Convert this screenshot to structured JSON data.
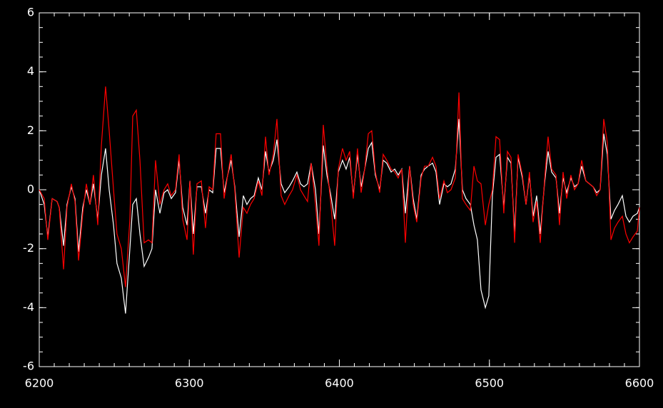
{
  "chart_data": {
    "type": "line",
    "x": [
      6200,
      6203.3,
      6205.7,
      6208.6,
      6211.9,
      6213.3,
      6216.2,
      6218.5,
      6221.4,
      6223.8,
      6226.2,
      6229,
      6231.4,
      6233.8,
      6236.1,
      6239,
      6241.4,
      6244.2,
      6246.6,
      6249.5,
      6251.8,
      6254.7,
      6257.5,
      6260.4,
      6262.3,
      6264.7,
      6267.1,
      6269.9,
      6272.8,
      6275.1,
      6277.5,
      6280.4,
      6283.2,
      6285.6,
      6288,
      6290.8,
      6293.2,
      6295.6,
      6298.5,
      6300.4,
      6302.7,
      6305.1,
      6308,
      6310.8,
      6313.2,
      6315.6,
      6317.9,
      6320.8,
      6323.2,
      6325.6,
      6327.9,
      6330.3,
      6333.2,
      6336,
      6338.4,
      6340.8,
      6343.2,
      6346,
      6348.4,
      6350.8,
      6353.1,
      6356,
      6358.4,
      6361.2,
      6363.6,
      6366.5,
      6368.8,
      6371.7,
      6374.1,
      6376.4,
      6378.8,
      6381.2,
      6384.1,
      6386.4,
      6389.3,
      6391.7,
      6394,
      6396.9,
      6399.3,
      6402.1,
      6404.5,
      6406.9,
      6409.3,
      6412.1,
      6414.5,
      6416.9,
      6419.3,
      6421.6,
      6424,
      6426.9,
      6429.2,
      6431.6,
      6434.5,
      6436.9,
      6439.2,
      6441.6,
      6444,
      6446.8,
      6449.2,
      6451.6,
      6454.5,
      6456.8,
      6459.2,
      6462.1,
      6464.4,
      6466.8,
      6469.7,
      6472,
      6474.4,
      6477.3,
      6479.7,
      6482,
      6484.4,
      6487.3,
      6489.7,
      6492,
      6494.4,
      6497.3,
      6499.6,
      6502,
      6504.4,
      6506.8,
      6509.6,
      6512,
      6514.4,
      6516.8,
      6519.1,
      6522,
      6524.4,
      6526.7,
      6529.1,
      6531.5,
      6533.9,
      6536.7,
      6539.1,
      6541.5,
      6544.4,
      6546.7,
      6549.1,
      6551.5,
      6554.3,
      6556.7,
      6559.1,
      6561.5,
      6564.3,
      6566.7,
      6569.1,
      6571.5,
      6573.8,
      6576.2,
      6578.6,
      6581,
      6583.4,
      6585.7,
      6588.6,
      6591,
      6593.3,
      6595.7,
      6598.6,
      6600
    ],
    "series": [
      {
        "color": "#ffffff",
        "values": [
          0,
          -0.5,
          -1.6,
          -0.3,
          -0.4,
          -0.6,
          -1.9,
          -0.5,
          0.1,
          -0.3,
          -2.1,
          -0.6,
          0,
          -0.5,
          0.2,
          -1,
          0.5,
          1.4,
          0,
          -1.2,
          -2.5,
          -3,
          -4.2,
          -2,
          -0.5,
          -0.3,
          -1.5,
          -2.6,
          -2.3,
          -2,
          0,
          -0.8,
          -0.1,
          0,
          -0.3,
          -0.1,
          1,
          -0.6,
          -1.2,
          0.3,
          -1.5,
          0.1,
          0.1,
          -0.8,
          0,
          -0.1,
          1.4,
          1.4,
          -0.1,
          0.5,
          1,
          0.1,
          -1.6,
          -0.2,
          -0.5,
          -0.3,
          -0.2,
          0.4,
          0,
          1.3,
          0.6,
          1,
          1.7,
          0.2,
          -0.1,
          0.1,
          0.3,
          0.6,
          0.2,
          0.1,
          0.2,
          0.9,
          0,
          -1.5,
          1.5,
          0.5,
          -0.1,
          -1,
          0.6,
          1,
          0.7,
          1.1,
          -0.2,
          1.2,
          0.1,
          0.7,
          1.4,
          1.6,
          0.5,
          0,
          1,
          0.9,
          0.6,
          0.7,
          0.5,
          0.7,
          -0.8,
          0.8,
          -0.3,
          -1,
          0.5,
          0.7,
          0.8,
          0.9,
          0.6,
          -0.5,
          0.2,
          0.1,
          0.2,
          0.7,
          2.4,
          0,
          -0.3,
          -0.5,
          -1.2,
          -1.7,
          -3.4,
          -4,
          -3.6,
          -0.2,
          1.1,
          1.2,
          -0.6,
          1.1,
          0.9,
          -1.5,
          1.1,
          0.4,
          -0.5,
          0.5,
          -0.9,
          -0.2,
          -1.5,
          0.2,
          1.3,
          0.6,
          0.4,
          -0.8,
          0.4,
          -0.1,
          0.4,
          0.1,
          0.2,
          0.8,
          0.3,
          0.2,
          0.1,
          -0.1,
          0,
          1.9,
          1.2,
          -1,
          -0.7,
          -0.5,
          -0.2,
          -0.9,
          -1.1,
          -0.9,
          -0.8,
          -0.6
        ]
      },
      {
        "color": "#ff0000",
        "values": [
          0,
          -0.3,
          -1.7,
          -0.3,
          -0.4,
          -0.6,
          -2.7,
          -0.6,
          0.2,
          -0.4,
          -2.4,
          -0.8,
          0.2,
          -0.5,
          0.5,
          -1.2,
          1.5,
          3.5,
          2,
          0,
          -1.5,
          -2,
          -3.3,
          -1,
          2.5,
          2.7,
          1,
          -1.8,
          -1.7,
          -1.8,
          1,
          -0.5,
          0,
          0.2,
          -0.2,
          0,
          1.2,
          -1,
          -1.7,
          0.3,
          -2.2,
          0.2,
          0.3,
          -1.3,
          0.1,
          0,
          1.9,
          1.9,
          -0.3,
          0.5,
          1.2,
          0,
          -2.3,
          -0.6,
          -0.8,
          -0.5,
          -0.3,
          0.3,
          -0.2,
          1.8,
          0.5,
          1.2,
          2.4,
          -0.2,
          -0.5,
          -0.2,
          0,
          0.5,
          0,
          -0.2,
          -0.4,
          0.9,
          -0.5,
          -1.9,
          2.2,
          0.8,
          -0.3,
          -1.9,
          0.7,
          1.4,
          1,
          1.3,
          -0.3,
          1.4,
          -0.1,
          0.7,
          1.9,
          2,
          0.6,
          -0.1,
          1.2,
          1,
          0.7,
          0.6,
          0.4,
          0.7,
          -1.8,
          0.8,
          -0.5,
          -1.1,
          0.4,
          0.8,
          0.8,
          1.1,
          0.8,
          -0.3,
          0.3,
          -0.1,
          0,
          0.4,
          3.3,
          -0.3,
          -0.5,
          -0.7,
          0.8,
          0.3,
          0.2,
          -1.2,
          -0.5,
          0,
          1.8,
          1.7,
          -0.8,
          1.3,
          1.1,
          -1.8,
          1.2,
          0.5,
          -0.5,
          0.6,
          -1.1,
          -0.4,
          -1.8,
          0.3,
          1.8,
          0.7,
          0.5,
          -1.2,
          0.6,
          -0.3,
          0.5,
          0,
          0.2,
          1,
          0.3,
          0.2,
          0.1,
          -0.2,
          0,
          2.4,
          1.6,
          -1.7,
          -1.3,
          -1.1,
          -0.9,
          -1.5,
          -1.8,
          -1.6,
          -1.4,
          -0.6
        ]
      }
    ],
    "xlim": [
      6200,
      6600
    ],
    "xticks": [
      6200,
      6300,
      6400,
      6500,
      6600
    ],
    "xminor": 10,
    "ylim": [
      -6,
      6
    ],
    "yticks": [
      -6,
      -4,
      -2,
      0,
      2,
      4,
      6
    ],
    "yminor": 0.5
  }
}
